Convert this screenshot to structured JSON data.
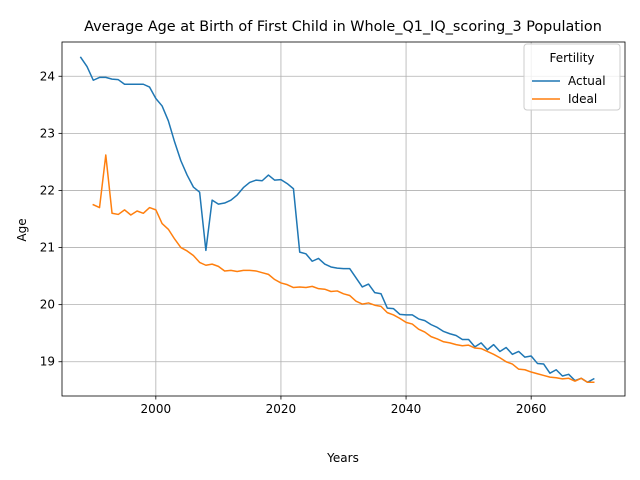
{
  "chart_data": {
    "type": "line",
    "title": "Average Age at Birth of First Child in Whole_Q1_IQ_scoring_3 Population",
    "xlabel": "Years",
    "ylabel": "Age",
    "xlim": [
      1985,
      2075
    ],
    "ylim": [
      18.4,
      24.6
    ],
    "xticks": [
      2000,
      2020,
      2040,
      2060
    ],
    "xtick_labels": [
      "2000",
      "2020",
      "2040",
      "2060"
    ],
    "yticks": [
      19,
      20,
      21,
      22,
      23,
      24
    ],
    "ytick_labels": [
      "19",
      "20",
      "21",
      "22",
      "23",
      "24"
    ],
    "grid": true,
    "legend": {
      "title": "Fertility",
      "placement": "top-right",
      "entries": [
        "Actual",
        "Ideal"
      ]
    },
    "series": [
      {
        "name": "Actual",
        "color": "#1f77b4",
        "x": [
          1988,
          1989,
          1990,
          1991,
          1992,
          1993,
          1994,
          1995,
          1996,
          1997,
          1998,
          1999,
          2000,
          2001,
          2002,
          2003,
          2004,
          2005,
          2006,
          2007,
          2008,
          2009,
          2010,
          2011,
          2012,
          2013,
          2014,
          2015,
          2016,
          2017,
          2018,
          2019,
          2020,
          2021,
          2022,
          2023,
          2024,
          2025,
          2026,
          2027,
          2028,
          2029,
          2030,
          2031,
          2032,
          2033,
          2034,
          2035,
          2036,
          2037,
          2038,
          2039,
          2040,
          2041,
          2042,
          2043,
          2044,
          2045,
          2046,
          2047,
          2048,
          2049,
          2050,
          2051,
          2052,
          2053,
          2054,
          2055,
          2056,
          2057,
          2058,
          2059,
          2060,
          2061,
          2062,
          2063,
          2064,
          2065,
          2066,
          2067,
          2068,
          2069,
          2070
        ],
        "y": [
          24.33,
          24.17,
          23.93,
          23.98,
          23.98,
          23.95,
          23.94,
          23.86,
          23.86,
          23.86,
          23.86,
          23.81,
          23.61,
          23.48,
          23.22,
          22.85,
          22.52,
          22.27,
          22.06,
          21.97,
          20.95,
          21.83,
          21.76,
          21.78,
          21.83,
          21.92,
          22.05,
          22.14,
          22.18,
          22.17,
          22.27,
          22.18,
          22.19,
          22.12,
          22.03,
          20.92,
          20.89,
          20.76,
          20.81,
          20.71,
          20.66,
          20.64,
          20.63,
          20.63,
          20.47,
          20.31,
          20.36,
          20.21,
          20.19,
          19.94,
          19.93,
          19.83,
          19.82,
          19.82,
          19.75,
          19.72,
          19.65,
          19.6,
          19.53,
          19.49,
          19.46,
          19.39,
          19.39,
          19.26,
          19.33,
          19.21,
          19.3,
          19.18,
          19.25,
          19.13,
          19.18,
          19.08,
          19.1,
          18.97,
          18.96,
          18.8,
          18.86,
          18.75,
          18.78,
          18.67,
          18.71,
          18.64,
          18.7
        ]
      },
      {
        "name": "Ideal",
        "color": "#ff7f0e",
        "x": [
          1990,
          1991,
          1992,
          1993,
          1994,
          1995,
          1996,
          1997,
          1998,
          1999,
          2000,
          2001,
          2002,
          2003,
          2004,
          2005,
          2006,
          2007,
          2008,
          2009,
          2010,
          2011,
          2012,
          2013,
          2014,
          2015,
          2016,
          2017,
          2018,
          2019,
          2020,
          2021,
          2022,
          2023,
          2024,
          2025,
          2026,
          2027,
          2028,
          2029,
          2030,
          2031,
          2032,
          2033,
          2034,
          2035,
          2036,
          2037,
          2038,
          2039,
          2040,
          2041,
          2042,
          2043,
          2044,
          2045,
          2046,
          2047,
          2048,
          2049,
          2050,
          2051,
          2052,
          2053,
          2054,
          2055,
          2056,
          2057,
          2058,
          2059,
          2060,
          2061,
          2062,
          2063,
          2064,
          2065,
          2066,
          2067,
          2068,
          2069,
          2070
        ],
        "y": [
          21.75,
          21.7,
          22.62,
          21.6,
          21.58,
          21.66,
          21.57,
          21.64,
          21.6,
          21.7,
          21.66,
          21.42,
          21.32,
          21.15,
          21.0,
          20.94,
          20.86,
          20.74,
          20.69,
          20.71,
          20.67,
          20.59,
          20.6,
          20.58,
          20.6,
          20.6,
          20.59,
          20.56,
          20.53,
          20.44,
          20.38,
          20.35,
          20.3,
          20.31,
          20.3,
          20.32,
          20.28,
          20.27,
          20.23,
          20.24,
          20.19,
          20.16,
          20.06,
          20.01,
          20.03,
          19.99,
          19.97,
          19.86,
          19.82,
          19.76,
          19.69,
          19.66,
          19.57,
          19.52,
          19.44,
          19.4,
          19.35,
          19.33,
          19.3,
          19.28,
          19.29,
          19.24,
          19.23,
          19.18,
          19.13,
          19.07,
          19.0,
          18.96,
          18.87,
          18.86,
          18.82,
          18.79,
          18.76,
          18.73,
          18.72,
          18.7,
          18.71,
          18.66,
          18.71,
          18.64,
          18.64
        ]
      }
    ]
  }
}
